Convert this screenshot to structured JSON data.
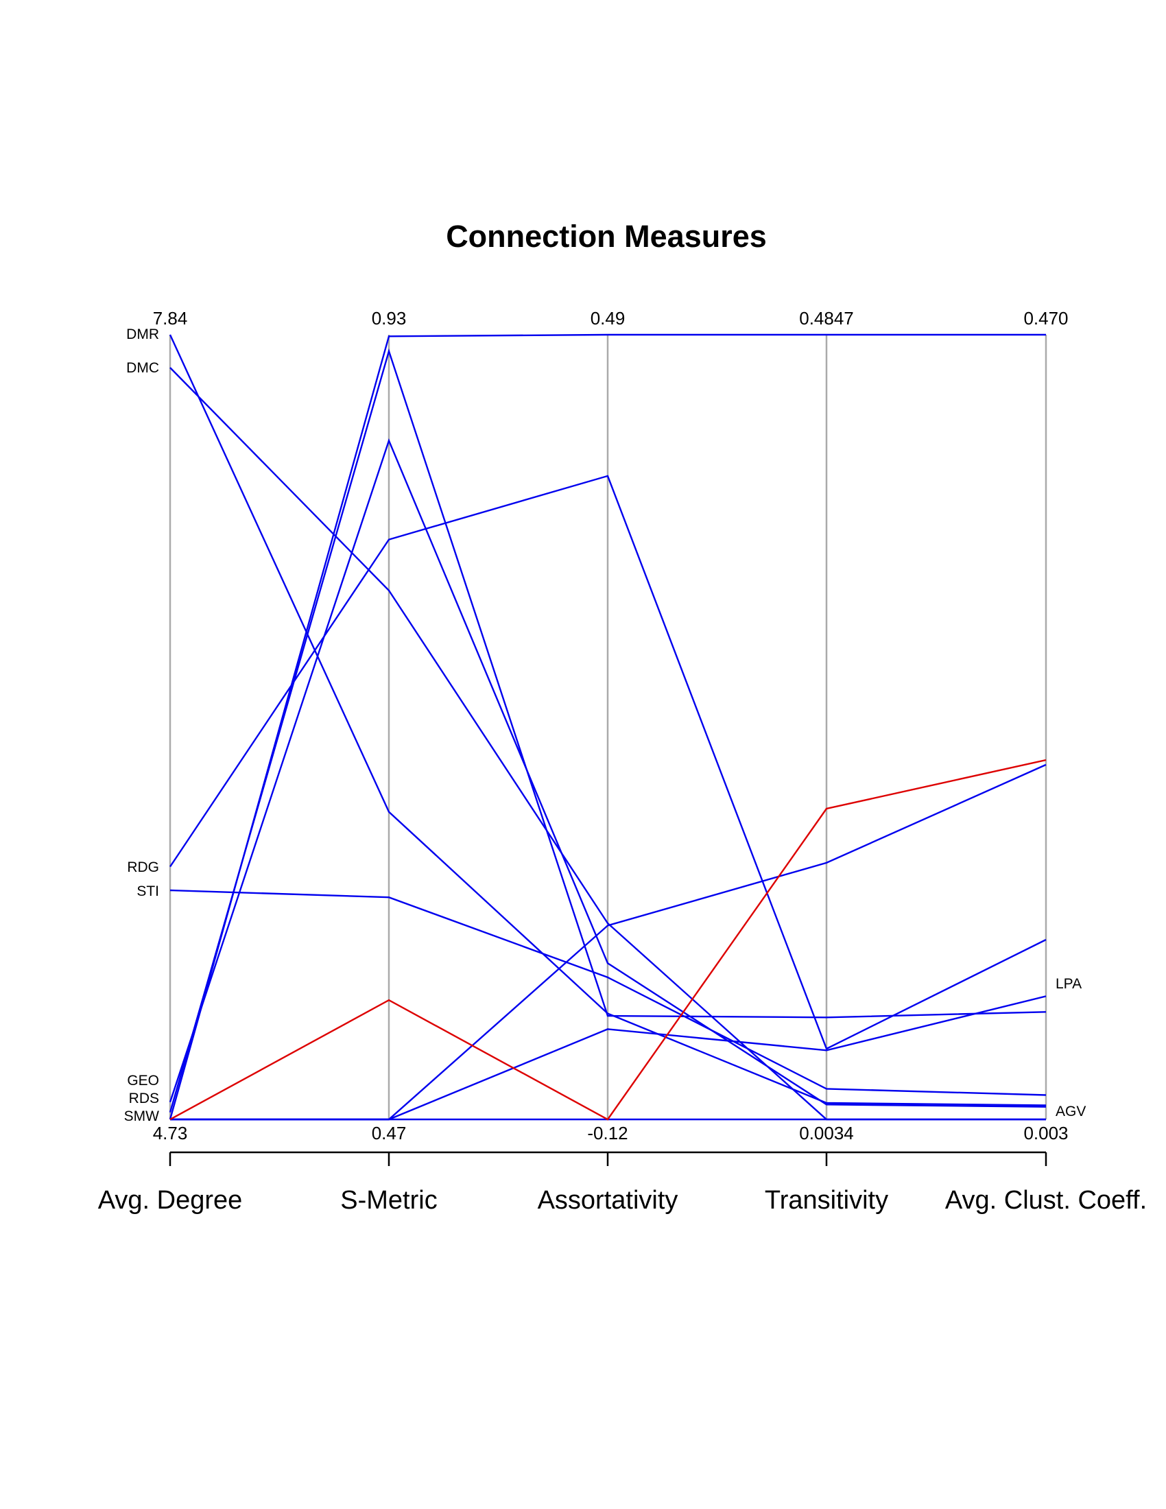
{
  "chart_data": {
    "type": "line",
    "title": "Connection Measures",
    "axes": [
      {
        "name": "Avg. Degree",
        "max_label": "7.84",
        "min_label": "4.73"
      },
      {
        "name": "S-Metric",
        "max_label": "0.93",
        "min_label": "0.47"
      },
      {
        "name": "Assortativity",
        "max_label": "0.49",
        "min_label": "-0.12"
      },
      {
        "name": "Transitivity",
        "max_label": "0.4847",
        "min_label": "0.0034"
      },
      {
        "name": "Avg. Clust. Coeff.",
        "max_label": "0.470",
        "min_label": "0.003"
      }
    ],
    "grid": false,
    "colors": {
      "highlight": "#dd0000",
      "default": "#0000ee",
      "axis": "#aaaaaa"
    },
    "series": [
      {
        "name": "DMR",
        "side": "left",
        "highlight": false,
        "values": [
          1.0,
          0.392,
          0.135,
          0.021,
          0.018
        ]
      },
      {
        "name": "DMC",
        "side": "left",
        "highlight": false,
        "values": [
          0.958,
          0.674,
          0.25,
          0.0,
          0.0
        ]
      },
      {
        "name": "RDG",
        "side": "left",
        "highlight": false,
        "values": [
          0.322,
          0.739,
          0.82,
          0.09,
          0.229
        ]
      },
      {
        "name": "STI",
        "side": "left",
        "highlight": false,
        "values": [
          0.292,
          0.283,
          0.181,
          0.039,
          0.031
        ]
      },
      {
        "name": "GEO",
        "side": "left",
        "highlight": false,
        "values": [
          0.022,
          0.865,
          0.199,
          0.019,
          0.016
        ]
      },
      {
        "name": "RDS",
        "side": "left",
        "highlight": false,
        "values": [
          0.009,
          0.979,
          0.132,
          0.13,
          0.137
        ]
      },
      {
        "name": "SMW",
        "side": "left",
        "highlight": true,
        "values": [
          0.0,
          0.152,
          0.0,
          0.396,
          0.458
        ]
      },
      {
        "name": "",
        "side": "none",
        "highlight": false,
        "values": [
          0.0,
          0.998,
          1.0,
          1.0,
          1.0
        ]
      },
      {
        "name": "",
        "side": "none",
        "highlight": false,
        "values": [
          0.0,
          0.0,
          0.247,
          0.327,
          0.452
        ]
      },
      {
        "name": "LPA",
        "side": "right",
        "highlight": false,
        "values": [
          0.0,
          0.0,
          0.115,
          0.088,
          0.157
        ]
      },
      {
        "name": "AGV",
        "side": "right",
        "highlight": false,
        "values": [
          0.0,
          0.0,
          0.0,
          0.0,
          0.0
        ]
      }
    ]
  }
}
